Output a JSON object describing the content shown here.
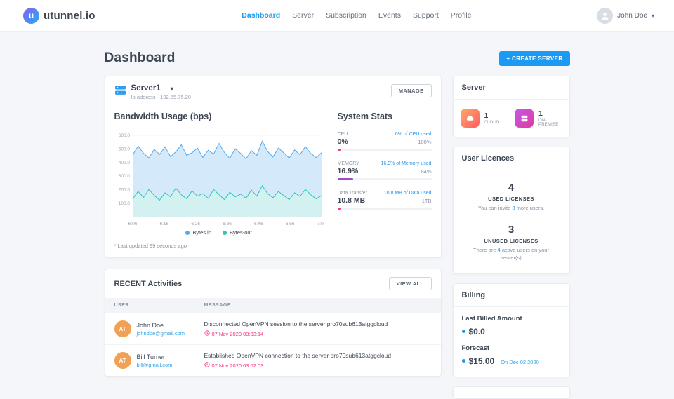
{
  "brand": {
    "name": "utunnel.io"
  },
  "nav": {
    "items": [
      {
        "label": "Dashboard",
        "active": true
      },
      {
        "label": "Server",
        "active": false
      },
      {
        "label": "Subscription",
        "active": false
      },
      {
        "label": "Events",
        "active": false
      },
      {
        "label": "Support",
        "active": false
      },
      {
        "label": "Profile",
        "active": false
      }
    ],
    "user": "John Doe"
  },
  "page": {
    "title": "Dashboard",
    "create_server_label": "+ CREATE SERVER"
  },
  "server_card": {
    "name": "Server1",
    "ip": "Ip address - 192.55.75.20",
    "manage_label": "MANAGE",
    "bandwidth_title": "Bandwidth Usage (bps)",
    "system_stats_title": "System Stats",
    "last_updated": "* Last updated 99 seconds ago",
    "stats": [
      {
        "name": "CPU",
        "value": "0%",
        "used_text": "0% of CPU used",
        "max": "100%",
        "pct": 3,
        "color": "#f5317f"
      },
      {
        "name": "MEMORY",
        "value": "16.9%",
        "used_text": "16.9% of Memory used",
        "max": "84%",
        "pct": 17,
        "color": "#a445d0"
      },
      {
        "name": "Data Transfer",
        "value": "10.8 MB",
        "used_text": "10.8 MB of Data used",
        "max": "1TB",
        "pct": 3,
        "color": "#f5317f"
      }
    ]
  },
  "chart_data": {
    "type": "area",
    "title": "Bandwidth Usage (bps)",
    "x_ticks": [
      "6:06",
      "6:16",
      "6:26",
      "6:36",
      "6:46",
      "6:56",
      "7:06"
    ],
    "y_ticks": [
      "600.0",
      "500.0",
      "400.0",
      "300.0",
      "200.0",
      "100.0"
    ],
    "ylim": [
      0,
      620
    ],
    "legend_position": "bottom",
    "series": [
      {
        "name": "Bytes in",
        "color": "#56a8ea",
        "fill": "#cde5f9",
        "values": [
          455,
          520,
          468,
          432,
          495,
          458,
          515,
          442,
          478,
          530,
          452,
          470,
          506,
          436,
          490,
          462,
          540,
          472,
          430,
          500,
          466,
          426,
          486,
          452,
          556,
          482,
          440,
          506,
          470,
          432,
          492,
          456,
          516,
          466,
          436,
          472
        ]
      },
      {
        "name": "Bytes-out",
        "color": "#2ec5b6",
        "fill": "#d3f2ee",
        "values": [
          130,
          186,
          142,
          200,
          156,
          122,
          176,
          146,
          210,
          162,
          132,
          190,
          152,
          170,
          136,
          200,
          162,
          126,
          180,
          146,
          166,
          136,
          196,
          152,
          228,
          170,
          140,
          186,
          156,
          126,
          176,
          150,
          200,
          162,
          132,
          156
        ]
      }
    ]
  },
  "activities": {
    "title": "RECENT Activities",
    "view_all": "VIEW ALL",
    "columns": [
      "USER",
      "MESSAGE"
    ],
    "rows": [
      {
        "avatar": "AT",
        "name": "John Doe",
        "email": "johndoe@gmail.com",
        "message": "Disconnected OpenVPN session to the server pro70sub613atggcloud",
        "time": "07 Nov 2020 03:03:14"
      },
      {
        "avatar": "AT",
        "name": "Bill Turner",
        "email": "bill@gmail.com",
        "message": "Established OpenVPN connection to the server pro70sub613atggcloud",
        "time": "07 Nov 2020 03:02:03"
      }
    ]
  },
  "sidebar": {
    "server": {
      "title": "Server",
      "items": [
        {
          "count": "1",
          "label": "CLOUD"
        },
        {
          "count": "1",
          "label": "ON-PREMISE"
        }
      ]
    },
    "licences": {
      "title": "User Licences",
      "blocks": [
        {
          "count": "4",
          "label": "USED LICENSES",
          "note_pre": "You can invite ",
          "note_hl": "3",
          "note_post": " more users."
        },
        {
          "count": "3",
          "label": "UNUSED LICENSES",
          "note_pre": "There are ",
          "note_hl": "4",
          "note_post": " active users on your server(s)"
        }
      ]
    },
    "billing": {
      "title": "Billing",
      "last_label": "Last Billed Amount",
      "last_value": "$0.0",
      "forecast_label": "Forecast",
      "forecast_value": "$15.00",
      "forecast_date": "On Dec 02 2020"
    }
  },
  "colors": {
    "accent_blue": "#1a9af2",
    "pink": "#f5317f",
    "purple": "#a445d0",
    "teal": "#2ec5b6"
  }
}
